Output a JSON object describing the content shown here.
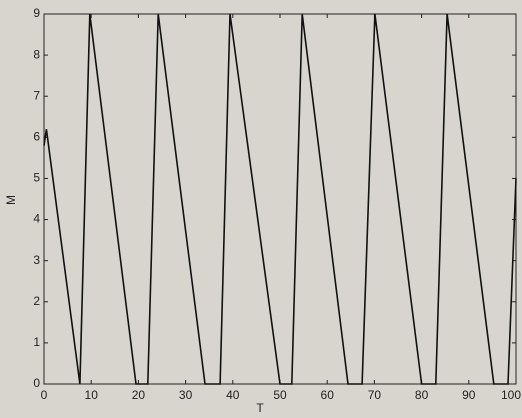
{
  "chart_data": {
    "type": "line",
    "x_label": "T",
    "y_label": "M",
    "x": [
      0,
      0.5,
      7.6,
      9.7,
      19.5,
      22,
      24.2,
      34.1,
      37.3,
      39.4,
      50,
      52.5,
      54.7,
      64.4,
      67.4,
      70.1,
      80,
      83,
      85.4,
      95.3,
      98.3,
      100
    ],
    "values": [
      5.8,
      6.2,
      0,
      9,
      0,
      0,
      9,
      0,
      0,
      9,
      0,
      0,
      9,
      0,
      0,
      9,
      0,
      0,
      9,
      0,
      0,
      5
    ],
    "color": "#111111",
    "xlim": [
      0,
      100
    ],
    "xticks": [
      0,
      10,
      20,
      30,
      40,
      50,
      60,
      70,
      80,
      90,
      100
    ],
    "ylim": [
      0,
      9
    ],
    "yticks": [
      0,
      1,
      2,
      3,
      4,
      5,
      6,
      7,
      8,
      9
    ]
  }
}
